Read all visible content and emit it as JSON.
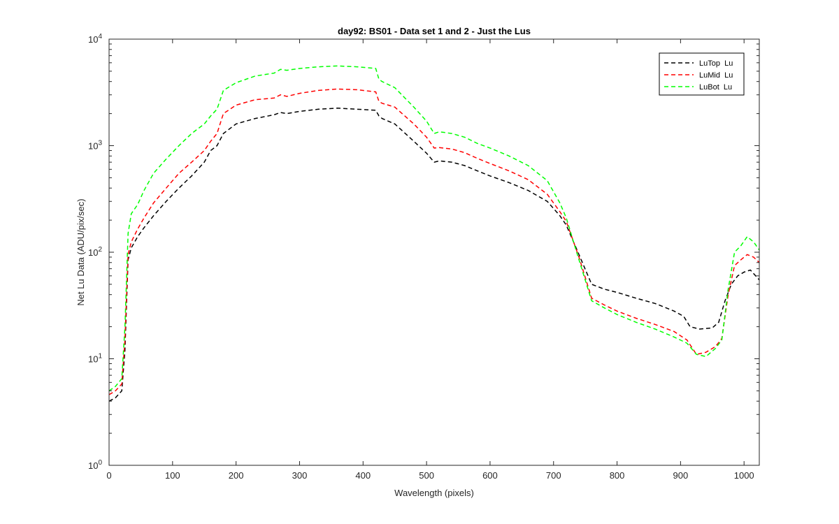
{
  "chart_data": {
    "type": "line",
    "title": "day92: BS01 - Data set 1 and 2 - Just the Lus",
    "xlabel": "Wavelength (pixels)",
    "ylabel": "Net Lu Data (ADU/pix/sec)",
    "xlim": [
      0,
      1024
    ],
    "ylim": [
      1,
      10000
    ],
    "yscale": "log",
    "x_ticks": [
      "0",
      "100",
      "200",
      "300",
      "400",
      "500",
      "600",
      "700",
      "800",
      "900",
      "1000"
    ],
    "y_ticks": [
      {
        "base": "10",
        "exp": "0"
      },
      {
        "base": "10",
        "exp": "1"
      },
      {
        "base": "10",
        "exp": "2"
      },
      {
        "base": "10",
        "exp": "3"
      },
      {
        "base": "10",
        "exp": "4"
      }
    ],
    "grid": false,
    "legend_position": "top-right",
    "series": [
      {
        "name": "LuTop  Lu",
        "color": "#000000",
        "x": [
          0,
          10,
          20,
          25,
          30,
          35,
          45,
          55,
          70,
          90,
          110,
          130,
          150,
          160,
          170,
          180,
          200,
          230,
          260,
          270,
          280,
          300,
          330,
          360,
          390,
          420,
          425,
          430,
          450,
          480,
          500,
          512,
          520,
          540,
          560,
          580,
          600,
          630,
          660,
          690,
          710,
          720,
          740,
          760,
          780,
          800,
          830,
          860,
          890,
          905,
          915,
          930,
          950,
          960,
          970,
          980,
          990,
          1000,
          1010,
          1024
        ],
        "y": [
          4.0,
          4.3,
          5.0,
          12,
          85,
          110,
          140,
          170,
          220,
          300,
          400,
          520,
          700,
          900,
          1000,
          1300,
          1600,
          1800,
          1950,
          2050,
          2000,
          2100,
          2200,
          2250,
          2200,
          2150,
          1900,
          1800,
          1600,
          1100,
          850,
          700,
          720,
          700,
          650,
          580,
          520,
          450,
          380,
          300,
          220,
          180,
          95,
          50,
          45,
          42,
          37,
          33,
          28,
          25,
          20,
          19,
          19.5,
          22,
          35,
          50,
          60,
          65,
          68,
          55
        ]
      },
      {
        "name": "LuMid  Lu",
        "color": "#ff0000",
        "x": [
          0,
          10,
          20,
          25,
          30,
          35,
          45,
          55,
          70,
          90,
          110,
          130,
          150,
          160,
          170,
          180,
          200,
          230,
          260,
          270,
          280,
          300,
          330,
          360,
          390,
          420,
          425,
          430,
          450,
          480,
          500,
          512,
          520,
          540,
          560,
          580,
          600,
          630,
          660,
          690,
          710,
          720,
          740,
          760,
          780,
          800,
          830,
          860,
          890,
          910,
          925,
          940,
          955,
          965,
          975,
          985,
          995,
          1005,
          1015,
          1024
        ],
        "y": [
          4.6,
          5.0,
          5.8,
          15,
          95,
          125,
          165,
          210,
          290,
          400,
          550,
          700,
          900,
          1100,
          1300,
          2000,
          2400,
          2700,
          2800,
          3000,
          2900,
          3100,
          3300,
          3400,
          3350,
          3200,
          2600,
          2500,
          2300,
          1600,
          1200,
          950,
          960,
          930,
          860,
          760,
          680,
          580,
          480,
          350,
          240,
          195,
          90,
          37,
          32,
          28,
          24,
          21,
          18,
          15,
          11,
          11.5,
          13,
          15.5,
          40,
          75,
          85,
          95,
          90,
          80
        ]
      },
      {
        "name": "LuBot  Lu",
        "color": "#00ff00",
        "x": [
          0,
          10,
          20,
          25,
          30,
          35,
          45,
          55,
          70,
          90,
          110,
          130,
          150,
          160,
          170,
          180,
          200,
          230,
          260,
          270,
          280,
          300,
          330,
          360,
          390,
          420,
          425,
          430,
          450,
          480,
          500,
          512,
          520,
          540,
          560,
          580,
          600,
          630,
          660,
          690,
          710,
          720,
          740,
          760,
          780,
          800,
          830,
          860,
          890,
          910,
          925,
          940,
          955,
          965,
          975,
          985,
          995,
          1005,
          1015,
          1024
        ],
        "y": [
          5.0,
          5.5,
          6.5,
          20,
          150,
          230,
          280,
          380,
          550,
          750,
          1000,
          1300,
          1600,
          1900,
          2200,
          3300,
          3900,
          4500,
          4800,
          5200,
          5100,
          5300,
          5500,
          5600,
          5500,
          5300,
          4200,
          4000,
          3500,
          2300,
          1700,
          1300,
          1350,
          1300,
          1200,
          1050,
          950,
          800,
          650,
          470,
          290,
          210,
          85,
          35,
          30,
          26,
          22,
          19,
          16,
          14,
          11,
          10.5,
          12.5,
          15,
          45,
          100,
          115,
          140,
          125,
          105
        ]
      }
    ]
  }
}
